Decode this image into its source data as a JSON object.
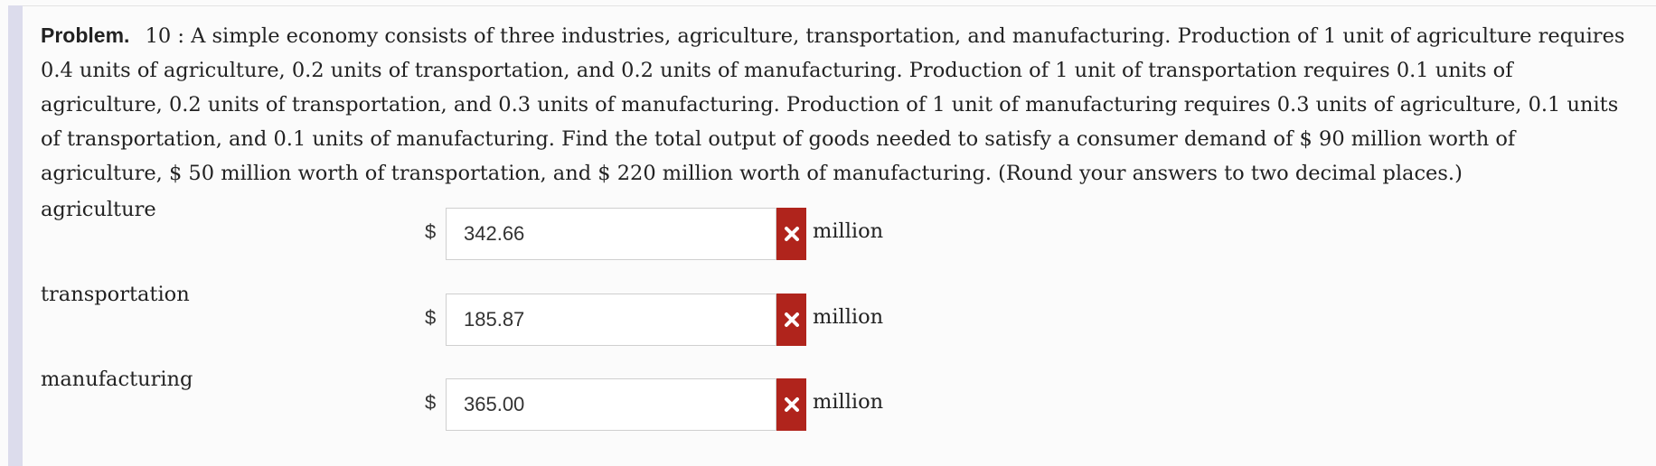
{
  "problem": {
    "label": "Problem.",
    "number": "10 :",
    "text": "A simple economy consists of three industries, agriculture, transportation, and manufacturing. Production of 1 unit of agriculture requires 0.4 units of agriculture, 0.2 units of transportation, and 0.2 units of manufacturing. Production of 1 unit of transportation requires 0.1 units of agriculture, 0.2 units of transportation, and 0.3 units of manufacturing. Production of 1 unit of manufacturing requires 0.3 units of agriculture, 0.1 units of transportation, and 0.1 units of manufacturing. Find the total output of goods needed to satisfy a consumer demand of $ 90 million worth of agriculture, $ 50 million worth of transportation, and $ 220 million worth of manufacturing. (Round your answers to two decimal places.)"
  },
  "answers": [
    {
      "label": "agriculture",
      "currency": "$",
      "value": "342.66",
      "unit": "million",
      "status": "incorrect"
    },
    {
      "label": "transportation",
      "currency": "$",
      "value": "185.87",
      "unit": "million",
      "status": "incorrect"
    },
    {
      "label": "manufacturing",
      "currency": "$",
      "value": "365.00",
      "unit": "million",
      "status": "incorrect"
    }
  ],
  "colors": {
    "incorrect": "#b0241c",
    "side_bar": "#dcdcec"
  }
}
